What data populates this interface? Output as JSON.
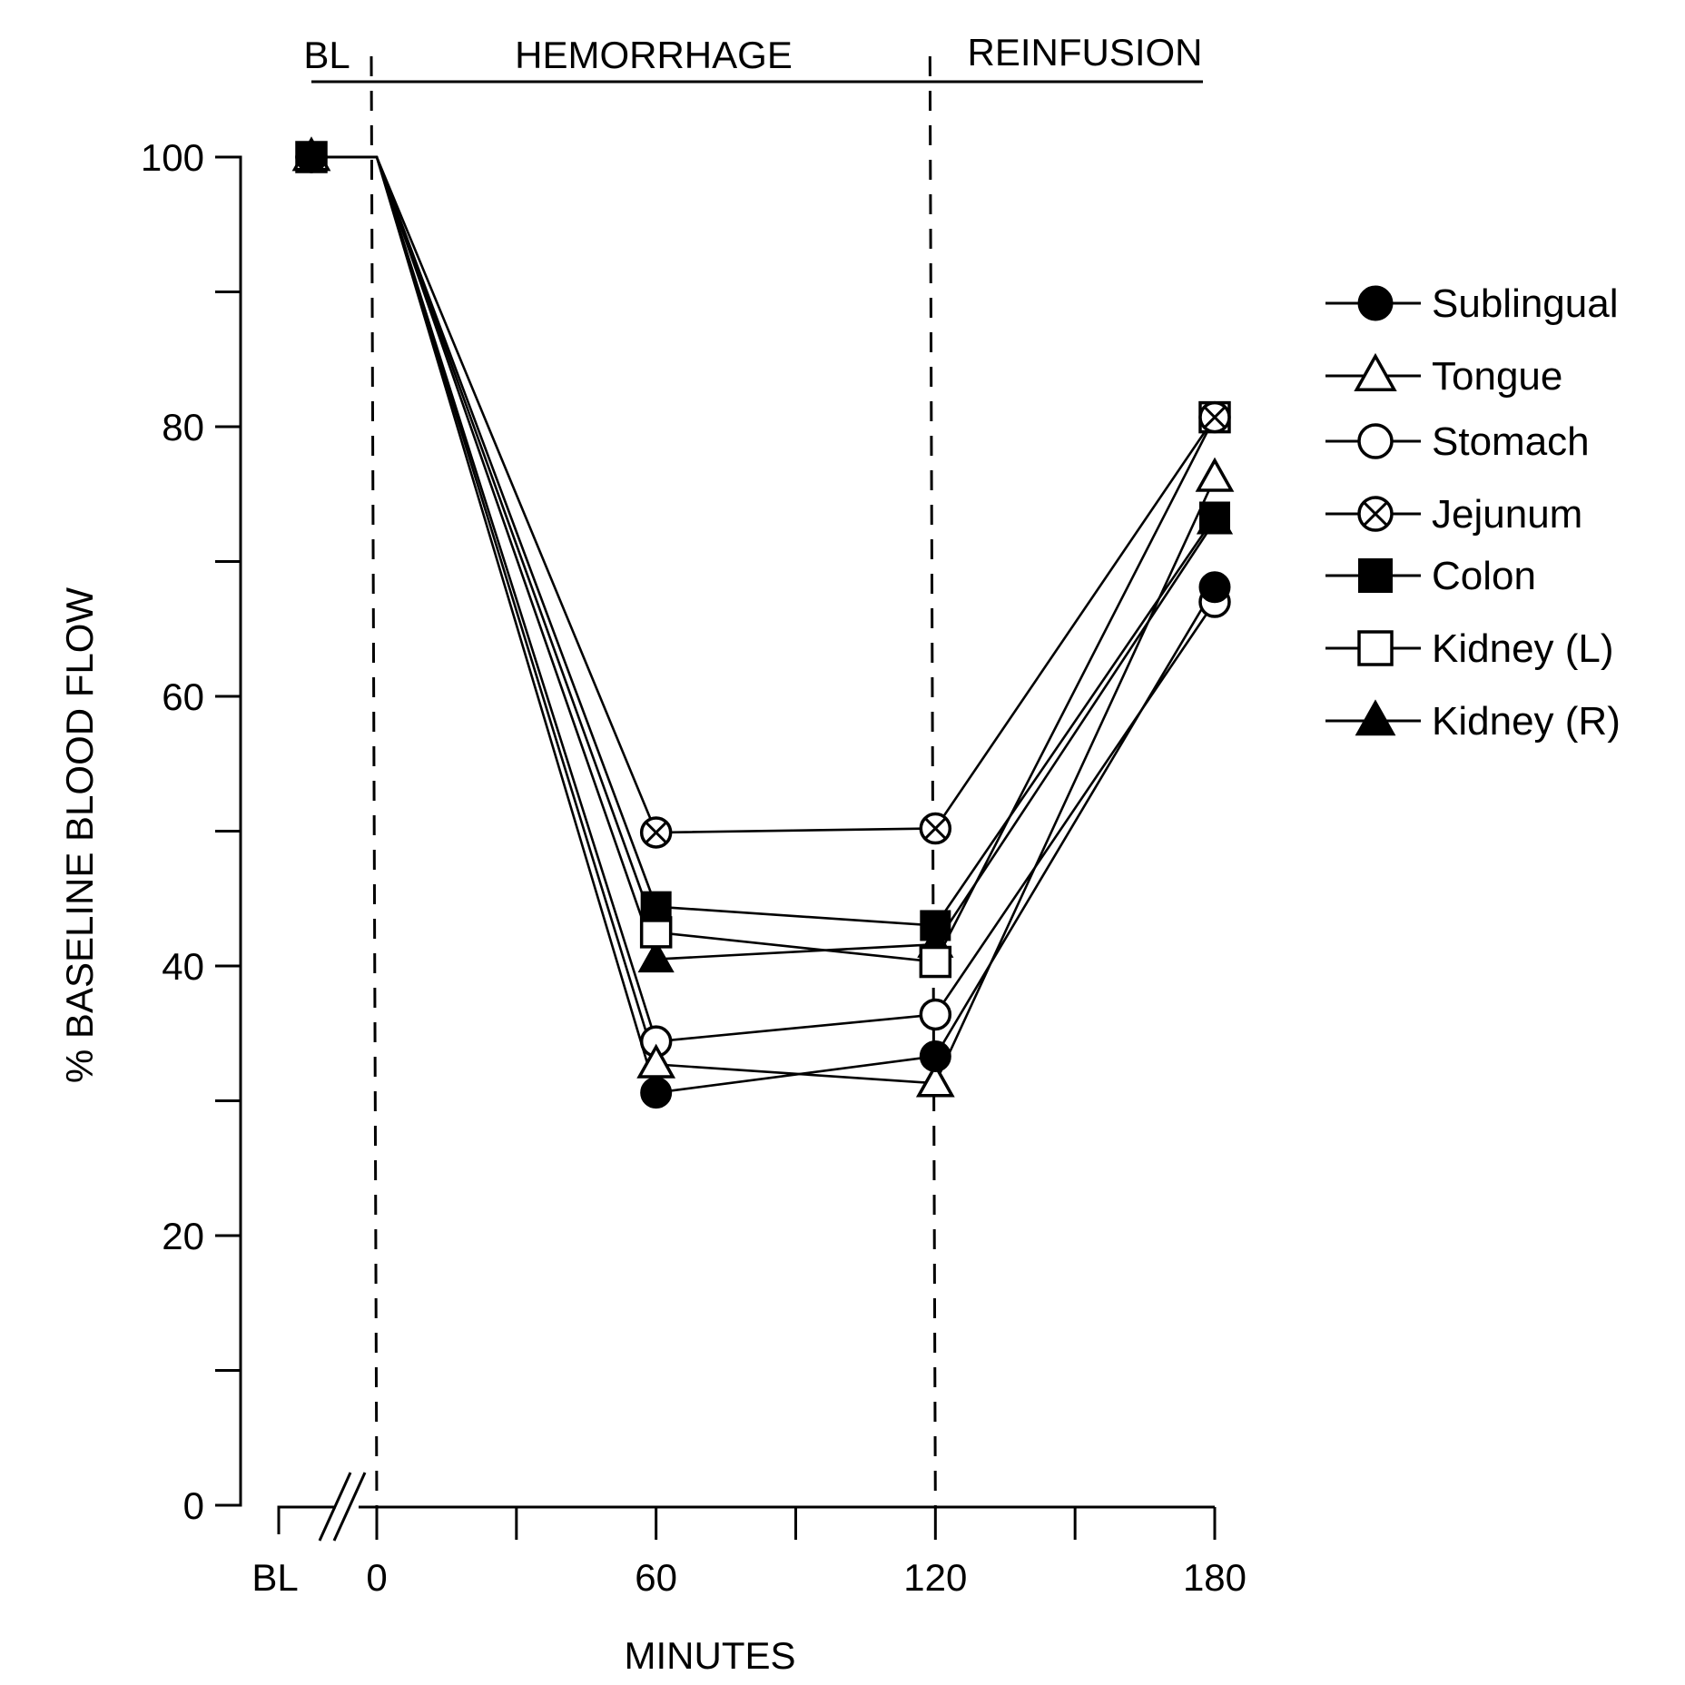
{
  "chart_data": {
    "type": "line",
    "title": "",
    "xlabel": "MINUTES",
    "ylabel": "% BASELINE BLOOD FLOW",
    "ylim": [
      0,
      100
    ],
    "xlim": [
      0,
      180
    ],
    "grid": false,
    "legend_position": "right",
    "phases": [
      {
        "label": "BL"
      },
      {
        "label": "HEMORRHAGE"
      },
      {
        "label": "REINFUSION"
      }
    ],
    "phase_boundaries_minutes": [
      0,
      120
    ],
    "x_ticks": [
      {
        "value": "BL",
        "label": "BL"
      },
      {
        "value": 0,
        "label": "0"
      },
      {
        "value": 30,
        "label": ""
      },
      {
        "value": 60,
        "label": "60"
      },
      {
        "value": 90,
        "label": ""
      },
      {
        "value": 120,
        "label": "120"
      },
      {
        "value": 150,
        "label": ""
      },
      {
        "value": 180,
        "label": "180"
      }
    ],
    "y_ticks": [
      {
        "value": 0,
        "label": "0"
      },
      {
        "value": 10,
        "label": ""
      },
      {
        "value": 20,
        "label": "20"
      },
      {
        "value": 30,
        "label": ""
      },
      {
        "value": 40,
        "label": "40"
      },
      {
        "value": 50,
        "label": ""
      },
      {
        "value": 60,
        "label": "60"
      },
      {
        "value": 70,
        "label": ""
      },
      {
        "value": 80,
        "label": "80"
      },
      {
        "value": 90,
        "label": ""
      },
      {
        "value": 100,
        "label": "100"
      }
    ],
    "x": [
      "BL",
      0,
      60,
      120,
      180
    ],
    "series": [
      {
        "name": "Sublingual",
        "marker": "filled-circle",
        "values": [
          100,
          100,
          30.6,
          33.3,
          68.1
        ]
      },
      {
        "name": "Tongue",
        "marker": "open-triangle",
        "values": [
          100,
          100,
          32.7,
          31.3,
          76.2
        ]
      },
      {
        "name": "Stomach",
        "marker": "open-circle",
        "values": [
          100,
          100,
          34.4,
          36.4,
          67.0
        ]
      },
      {
        "name": "Jejunum",
        "marker": "crossed-circle",
        "values": [
          100,
          100,
          49.9,
          50.2,
          80.7
        ]
      },
      {
        "name": "Colon",
        "marker": "filled-square",
        "values": [
          100,
          100,
          44.4,
          43.0,
          73.3
        ]
      },
      {
        "name": "Kidney (L)",
        "marker": "open-square",
        "values": [
          100,
          100,
          42.5,
          40.3,
          80.7
        ]
      },
      {
        "name": "Kidney (R)",
        "marker": "filled-triangle",
        "values": [
          100,
          100,
          40.5,
          41.6,
          73.0
        ]
      }
    ],
    "colors": {
      "ink": "#000000",
      "background": "#ffffff"
    }
  }
}
